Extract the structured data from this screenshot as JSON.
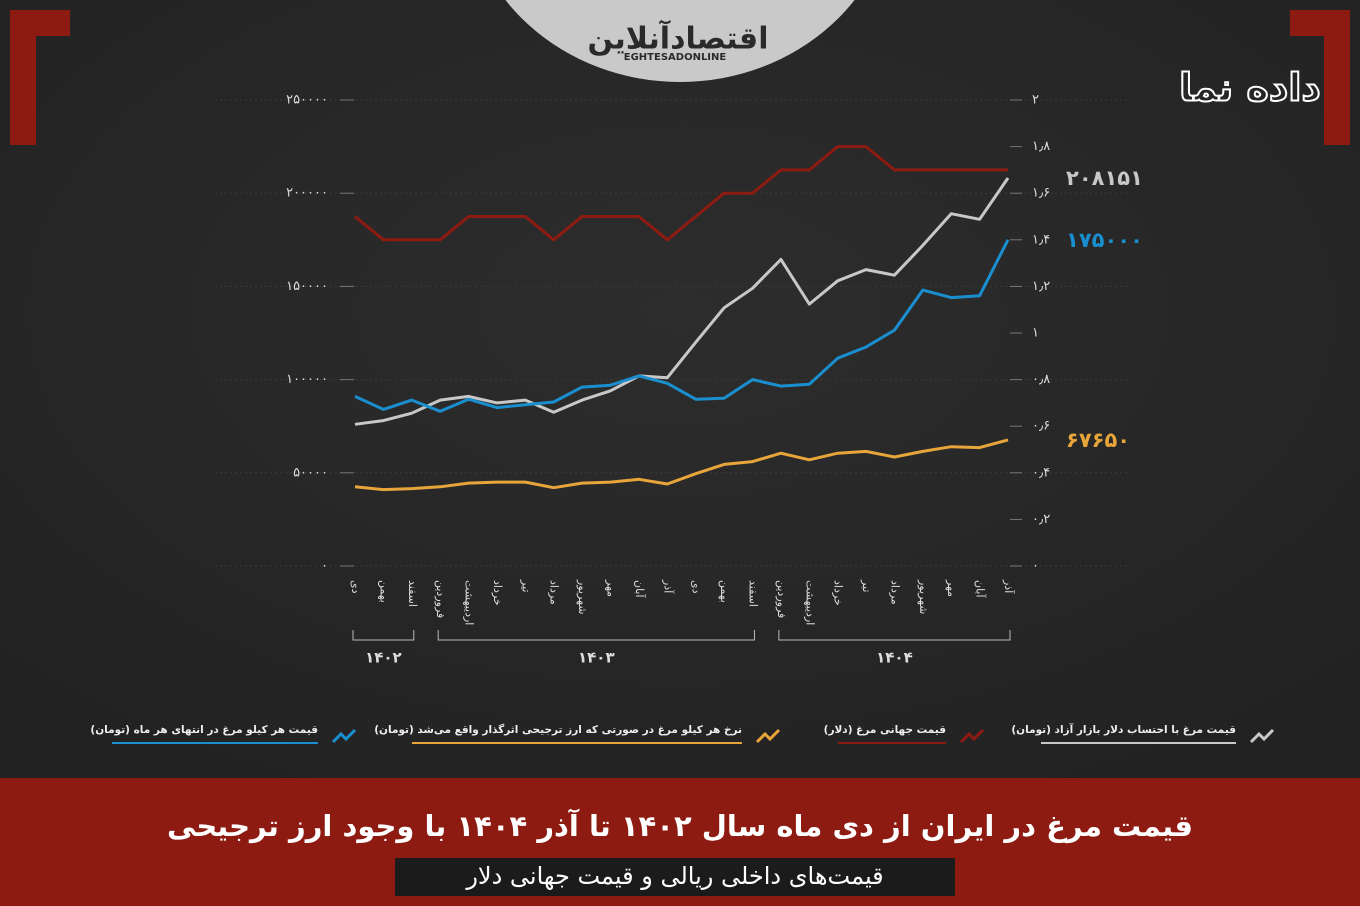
{
  "branding": {
    "site_name": "اقتصادآنلاین",
    "site_latin": "EGHTESADONLINE",
    "series_logo": "داده نما"
  },
  "chart_data": {
    "type": "line",
    "title": "قیمت مرغ در ایران از دی ماه سال ۱۴۰۲ تا آذر ۱۴۰۴ با وجود ارز ترجیحی",
    "subtitle": "قیمت‌های داخلی ریالی و قیمت جهانی دلار",
    "categories": [
      "دی",
      "بهمن",
      "اسفند",
      "فروردین",
      "اردیبهشت",
      "خرداد",
      "تیر",
      "مرداد",
      "شهریور",
      "مهر",
      "آبان",
      "آذر",
      "دی",
      "بهمن",
      "اسفند",
      "فروردین",
      "اردیبهشت",
      "خرداد",
      "تیر",
      "مرداد",
      "شهریور",
      "مهر",
      "آبان",
      "آذر"
    ],
    "category_groups": [
      {
        "label": "۱۴۰۲",
        "count": 3
      },
      {
        "label": "۱۴۰۳",
        "count": 12
      },
      {
        "label": "۱۴۰۴",
        "count": 9
      }
    ],
    "ylim": [
      0,
      250000
    ],
    "yticks": [
      {
        "value": 0,
        "label": "۰"
      },
      {
        "value": 50000,
        "label": "۵۰۰۰۰"
      },
      {
        "value": 100000,
        "label": "۱۰۰۰۰۰"
      },
      {
        "value": 150000,
        "label": "۱۵۰۰۰۰"
      },
      {
        "value": 200000,
        "label": "۲۰۰۰۰۰"
      },
      {
        "value": 250000,
        "label": "۲۵۰۰۰۰"
      }
    ],
    "y2lim": [
      0,
      2
    ],
    "y2ticks": [
      {
        "value": 0,
        "label": "۰"
      },
      {
        "value": 0.2,
        "label": "۰٫۲"
      },
      {
        "value": 0.4,
        "label": "۰٫۴"
      },
      {
        "value": 0.6,
        "label": "۰٫۶"
      },
      {
        "value": 0.8,
        "label": "۰٫۸"
      },
      {
        "value": 1,
        "label": "۱"
      },
      {
        "value": 1.2,
        "label": "۱٫۲"
      },
      {
        "value": 1.4,
        "label": "۱٫۴"
      },
      {
        "value": 1.6,
        "label": "۱٫۶"
      },
      {
        "value": 1.8,
        "label": "۱٫۸"
      },
      {
        "value": 2,
        "label": "۲"
      }
    ],
    "grid": true,
    "series": [
      {
        "name": "قیمت مرغ با احتساب دلار بازار آزاد (تومان)",
        "color": "#c8c8c8",
        "values": [
          76000,
          78000,
          82000,
          89000,
          91000,
          87500,
          89000,
          82500,
          89000,
          94000,
          102000,
          101000,
          120000,
          138500,
          149000,
          164500,
          140500,
          153000,
          159000,
          156000,
          172000,
          189000,
          186000,
          208151
        ],
        "value_labels": [
          null,
          null,
          null,
          null,
          null,
          null,
          null,
          null,
          null,
          null,
          null,
          null,
          null,
          null,
          null,
          null,
          null,
          null,
          null,
          null,
          null,
          null,
          null,
          "۲۰۸۱۵۱"
        ]
      },
      {
        "name": "قیمت جهانی مرغ (دلار)",
        "color": "#8e1b12",
        "axis": "y2",
        "values": [
          1.5,
          1.4,
          1.4,
          1.4,
          1.5,
          1.5,
          1.5,
          1.4,
          1.5,
          1.5,
          1.5,
          1.4,
          1.5,
          1.6,
          1.6,
          1.7,
          1.7,
          1.8,
          1.8,
          1.7,
          1.7,
          1.7,
          1.7,
          1.7
        ]
      },
      {
        "name": "نرخ هر کیلو مرغ در صورتی که ارز ترجیحی اثرگذار واقع می‌شد (تومان)",
        "color": "#e8a53a",
        "values": [
          42500,
          41000,
          41500,
          42500,
          44500,
          45000,
          45000,
          42000,
          44500,
          45000,
          46500,
          44000,
          49500,
          54500,
          56000,
          60500,
          57000,
          60500,
          61500,
          58500,
          61500,
          64000,
          63500,
          67650
        ],
        "value_labels": [
          null,
          null,
          null,
          null,
          null,
          null,
          null,
          null,
          null,
          null,
          null,
          null,
          null,
          null,
          null,
          null,
          null,
          null,
          null,
          null,
          null,
          null,
          null,
          "۶۷۶۵۰"
        ]
      },
      {
        "name": "قیمت هر کیلو مرغ در انتهای هر ماه (تومان)",
        "color": "#1a8fd0",
        "values": [
          91000,
          84000,
          89000,
          83000,
          89500,
          85000,
          86500,
          88000,
          96000,
          97000,
          102000,
          98000,
          89500,
          90000,
          100000,
          96500,
          97500,
          111500,
          117500,
          126500,
          148000,
          144000,
          145000,
          175000
        ],
        "value_labels": [
          null,
          null,
          null,
          null,
          null,
          null,
          null,
          null,
          null,
          null,
          null,
          null,
          null,
          null,
          null,
          null,
          null,
          null,
          null,
          null,
          null,
          null,
          null,
          "۱۷۵۰۰۰"
        ]
      }
    ]
  }
}
